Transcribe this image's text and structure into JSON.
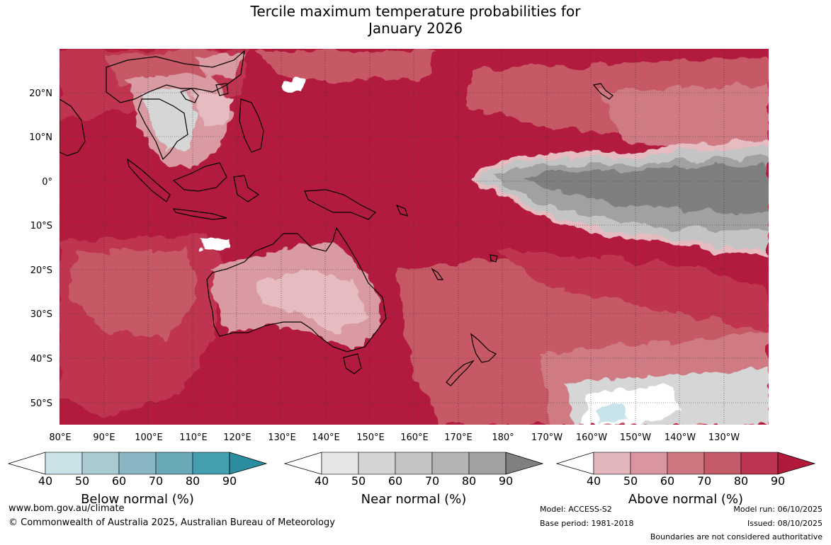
{
  "title": {
    "line1": "Tercile maximum temperature probabilities for",
    "line2": "January 2026"
  },
  "map": {
    "lat_labels": [
      "20°N",
      "10°N",
      "0°",
      "10°S",
      "20°S",
      "30°S",
      "40°S",
      "50°S"
    ],
    "lon_labels": [
      "80°E",
      "90°E",
      "100°E",
      "110°E",
      "120°E",
      "130°E",
      "140°E",
      "150°E",
      "160°E",
      "170°E",
      "180°",
      "170°W",
      "160°W",
      "150°W",
      "140°W",
      "130°W"
    ],
    "colors": {
      "above_90": "#b31b3e",
      "above_80": "#bf3550",
      "above_70": "#c75866",
      "above_60": "#d07a84",
      "above_50": "#d99aa2",
      "above_40": "#e6bcc1",
      "near_90": "#7f7f7f",
      "near_80": "#a1a1a1",
      "near_70": "#c4c4c4",
      "near_60": "#d6d6d6",
      "below_40": "#c9e3ea",
      "land_outline": "#000000"
    }
  },
  "colorbars": [
    {
      "name": "below",
      "label": "Below normal (%)",
      "ticks": [
        "40",
        "50",
        "60",
        "70",
        "80",
        "90"
      ],
      "colors": [
        "#cbe2e8",
        "#a8cad0",
        "#88b6c2",
        "#6aa9b8",
        "#449fb1",
        "#2a8ea0"
      ]
    },
    {
      "name": "near",
      "label": "Near normal (%)",
      "ticks": [
        "40",
        "50",
        "60",
        "70",
        "80",
        "90"
      ],
      "colors": [
        "#e6e6e6",
        "#d4d4d4",
        "#c4c4c4",
        "#b3b3b3",
        "#a1a1a1",
        "#808080"
      ]
    },
    {
      "name": "above",
      "label": "Above normal (%)",
      "ticks": [
        "40",
        "50",
        "60",
        "70",
        "80",
        "90"
      ],
      "colors": [
        "#e3b6be",
        "#d9969f",
        "#cd7781",
        "#c35b69",
        "#bd3450",
        "#b21a3b"
      ]
    }
  ],
  "footer": {
    "website": "www.bom.gov.au/climate",
    "copyright": "© Commonwealth of Australia 2025, Australian Bureau of Meteorology",
    "model": "Model: ACCESS-S2",
    "base_period": "Base period: 1981-2018",
    "model_run": "Model run: 06/10/2025",
    "issued": "Issued: 08/10/2025",
    "disclaimer": "Boundaries are not considered authoritative"
  }
}
